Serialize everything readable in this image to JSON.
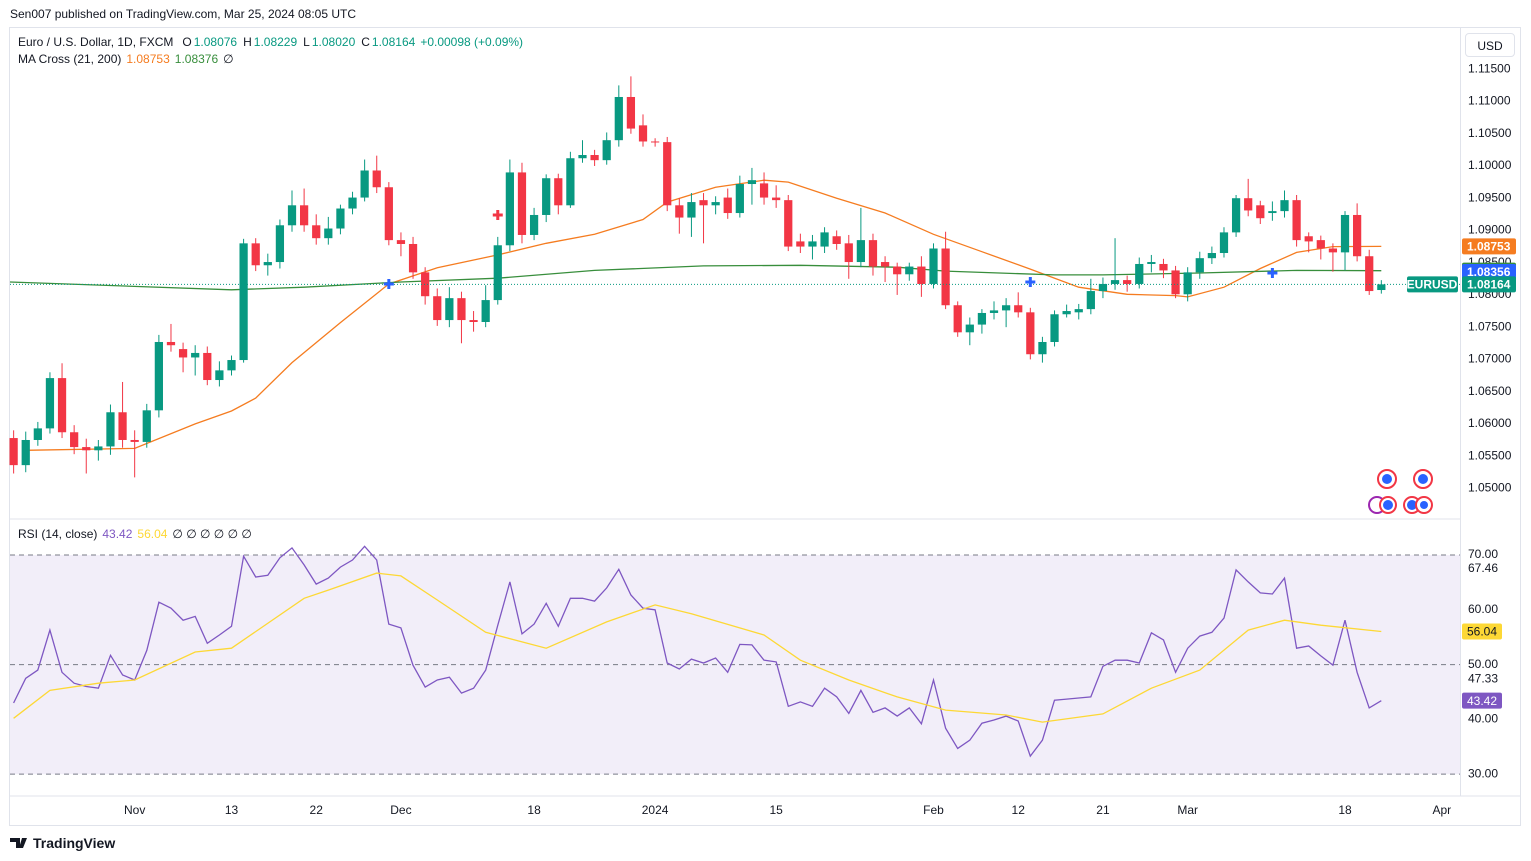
{
  "header": {
    "attribution": "Sen007 published on TradingView.com, Mar 25, 2024 08:05 UTC",
    "currency": "USD",
    "footer": "TradingView"
  },
  "chart_data": [
    {
      "type": "candlestick",
      "title": "Euro / U.S. Dollar, 1D, FXCM",
      "ohlc_legend": [
        {
          "label": "O",
          "value": "1.08076"
        },
        {
          "label": "H",
          "value": "1.08229"
        },
        {
          "label": "L",
          "value": "1.08020"
        },
        {
          "label": "C",
          "value": "1.08164"
        }
      ],
      "change": "+0.00098 (+0.09%)",
      "up_color": "#089981",
      "down_color": "#f23645",
      "open": [
        1.0578,
        1.0536,
        1.0575,
        1.0593,
        1.0671,
        1.0587,
        1.0564,
        1.0559,
        1.0565,
        1.0618,
        1.0575,
        1.0572,
        1.0621,
        1.0727,
        1.0716,
        1.0703,
        1.071,
        1.0668,
        1.0683,
        1.0699,
        1.088,
        1.0846,
        1.0851,
        1.0908,
        1.0939,
        1.0908,
        1.0888,
        1.0903,
        1.0934,
        1.0951,
        1.0993,
        1.0967,
        1.0885,
        1.0879,
        1.0835,
        1.0798,
        1.0761,
        1.0795,
        1.0761,
        1.0758,
        1.0792,
        1.0877,
        1.099,
        1.0893,
        1.0924,
        1.0981,
        1.0939,
        1.1012,
        1.1017,
        1.1009,
        1.104,
        1.1107,
        1.1063,
        1.1038,
        1.1037,
        1.0939,
        1.092,
        1.0947,
        1.0939,
        1.0951,
        1.0927,
        1.0972,
        1.0973,
        1.0951,
        1.0947,
        1.0883,
        1.0875,
        1.0875,
        1.0891,
        1.088,
        1.0851,
        1.0885,
        1.0851,
        1.0844,
        1.0832,
        1.0844,
        1.0817,
        1.0872,
        1.0784,
        1.0742,
        1.0754,
        1.0772,
        1.0776,
        1.0784,
        1.0773,
        1.0708,
        1.0727,
        1.077,
        1.0773,
        1.0778,
        1.0806,
        1.0817,
        1.0823,
        1.0817,
        1.0848,
        1.0848,
        1.0838,
        1.0801,
        1.0835,
        1.0857,
        1.0865,
        1.0897,
        1.095,
        1.0939,
        1.0927,
        1.093,
        1.0947,
        1.0891,
        1.0885,
        1.0872,
        1.0866,
        1.0924,
        1.086,
        1.08076
      ],
      "high": [
        1.059,
        1.0588,
        1.0603,
        1.068,
        1.0694,
        1.0598,
        1.0577,
        1.0575,
        1.063,
        1.0665,
        1.059,
        1.0631,
        1.0738,
        1.0755,
        1.0726,
        1.0722,
        1.072,
        1.0697,
        1.0706,
        1.0887,
        1.0888,
        1.0864,
        1.0917,
        1.0962,
        1.0965,
        1.0925,
        1.0921,
        1.094,
        1.096,
        1.101,
        1.1016,
        1.0975,
        1.0897,
        1.089,
        1.0843,
        1.081,
        1.0812,
        1.0805,
        1.0775,
        1.0815,
        1.089,
        1.101,
        1.1005,
        1.0935,
        1.0987,
        1.0988,
        1.1022,
        1.104,
        1.1025,
        1.1052,
        1.1125,
        1.1139,
        1.108,
        1.1043,
        1.1045,
        1.095,
        1.0958,
        1.0958,
        1.0953,
        1.0965,
        1.0985,
        1.0997,
        1.099,
        1.097,
        1.0955,
        1.0895,
        1.0893,
        1.0905,
        1.09,
        1.0893,
        1.0935,
        1.0895,
        1.086,
        1.085,
        1.085,
        1.086,
        1.088,
        1.0898,
        1.079,
        1.0765,
        1.0778,
        1.079,
        1.0795,
        1.0804,
        1.078,
        1.0735,
        1.0776,
        1.0785,
        1.0786,
        1.0825,
        1.0827,
        1.0888,
        1.083,
        1.0858,
        1.0862,
        1.0856,
        1.0845,
        1.0843,
        1.0867,
        1.0875,
        1.0905,
        1.0955,
        1.098,
        1.0946,
        1.0945,
        1.0962,
        1.0955,
        1.0897,
        1.0892,
        1.088,
        1.093,
        1.0942,
        1.087,
        1.08229
      ],
      "low": [
        1.0523,
        1.0525,
        1.0566,
        1.0585,
        1.0578,
        1.0553,
        1.0523,
        1.0543,
        1.0552,
        1.0563,
        1.0517,
        1.0563,
        1.061,
        1.0712,
        1.068,
        1.0675,
        1.066,
        1.0658,
        1.0675,
        1.0695,
        1.0837,
        1.083,
        1.0841,
        1.0898,
        1.0898,
        1.0878,
        1.0878,
        1.0894,
        1.0925,
        1.0945,
        1.0958,
        1.0877,
        1.086,
        1.0825,
        1.0785,
        1.0752,
        1.075,
        1.0725,
        1.0743,
        1.075,
        1.0785,
        1.0868,
        1.088,
        1.0885,
        1.0913,
        1.0925,
        1.0935,
        1.1005,
        1.1,
        1.1002,
        1.103,
        1.105,
        1.103,
        1.103,
        1.093,
        1.0895,
        1.089,
        1.088,
        1.0925,
        1.0918,
        1.092,
        1.094,
        1.094,
        1.0935,
        1.0868,
        1.0865,
        1.0855,
        1.0865,
        1.087,
        1.0825,
        1.0843,
        1.083,
        1.082,
        1.08,
        1.0822,
        1.0797,
        1.081,
        1.0778,
        1.0735,
        1.0722,
        1.074,
        1.0762,
        1.075,
        1.0765,
        1.07,
        1.0695,
        1.072,
        1.0765,
        1.0762,
        1.077,
        1.0795,
        1.0808,
        1.0805,
        1.081,
        1.0835,
        1.0826,
        1.0795,
        1.079,
        1.0825,
        1.0848,
        1.0858,
        1.089,
        1.0922,
        1.091,
        1.0915,
        1.092,
        1.0875,
        1.0866,
        1.0855,
        1.0836,
        1.0838,
        1.0852,
        1.08,
        1.0802
      ],
      "close": [
        1.0536,
        1.0575,
        1.0593,
        1.0671,
        1.0587,
        1.0564,
        1.0559,
        1.0565,
        1.0618,
        1.0575,
        1.0572,
        1.0621,
        1.0727,
        1.0722,
        1.0703,
        1.071,
        1.0668,
        1.0683,
        1.0699,
        1.088,
        1.0846,
        1.0851,
        1.0908,
        1.0939,
        1.0908,
        1.0888,
        1.0903,
        1.0934,
        1.0951,
        1.0993,
        1.0967,
        1.0885,
        1.0879,
        1.0835,
        1.0798,
        1.0761,
        1.0795,
        1.0761,
        1.0758,
        1.0792,
        1.0877,
        1.099,
        1.0893,
        1.0924,
        1.0981,
        1.0939,
        1.1012,
        1.1017,
        1.1009,
        1.104,
        1.1107,
        1.1058,
        1.1038,
        1.1037,
        1.0939,
        1.092,
        1.0944,
        1.0939,
        1.0944,
        1.0927,
        1.0972,
        1.0978,
        1.0951,
        1.0947,
        1.0875,
        1.0875,
        1.0883,
        1.0897,
        1.0879,
        1.0851,
        1.0885,
        1.0844,
        1.0844,
        1.0832,
        1.0844,
        1.0817,
        1.0872,
        1.0784,
        1.0742,
        1.0754,
        1.0772,
        1.0776,
        1.0784,
        1.0773,
        1.0708,
        1.0727,
        1.077,
        1.0775,
        1.0778,
        1.0806,
        1.0817,
        1.0823,
        1.0817,
        1.0848,
        1.0851,
        1.0838,
        1.0801,
        1.0835,
        1.0857,
        1.0865,
        1.0897,
        1.095,
        1.0931,
        1.0919,
        1.093,
        1.0947,
        1.0885,
        1.0883,
        1.0872,
        1.0866,
        1.0924,
        1.086,
        1.0806,
        1.08164
      ],
      "indicator": {
        "name": "MA Cross (21, 200)",
        "extra": "∅",
        "series": [
          {
            "color": "#f57c20",
            "x": [
              1,
              10,
              15,
              18,
              20,
              23,
              27,
              31,
              35,
              40,
              44,
              48,
              52,
              54,
              58,
              62,
              64,
              68,
              72,
              76,
              80,
              84,
              88,
              92,
              96,
              97,
              100,
              103,
              106,
              109,
              113
            ],
            "values": [
              1.0559,
              1.0562,
              1.06,
              1.062,
              1.064,
              1.0695,
              1.0757,
              1.0817,
              1.0842,
              1.0862,
              1.088,
              1.0894,
              1.0917,
              1.0944,
              1.0967,
              1.0978,
              1.0975,
              1.095,
              1.0927,
              1.0894,
              1.0867,
              1.084,
              1.0812,
              1.0801,
              1.0799,
              1.0797,
              1.0812,
              1.0841,
              1.0866,
              1.0875,
              1.08753
            ]
          },
          {
            "color": "#388e3c",
            "x": [
              -0.3,
              18,
              24,
              32,
              40,
              48,
              57,
              65,
              73,
              77,
              86,
              90,
              98,
              106,
              113
            ],
            "values": [
              1.082,
              1.0808,
              1.0812,
              1.082,
              1.0826,
              1.0838,
              1.0845,
              1.0846,
              1.0843,
              1.0837,
              1.0831,
              1.0831,
              1.0834,
              1.0838,
              1.08376
            ]
          }
        ]
      },
      "price_tags": [
        {
          "value": 1.08753,
          "label": "1.08753",
          "color": "#f57c20"
        },
        {
          "value": 1.08376,
          "label": "1.08376",
          "color": "#388e3c"
        },
        {
          "value": 1.08356,
          "label": "1.08356",
          "color": "#2962ff"
        },
        {
          "name": "EURUSD",
          "value": 1.08164,
          "label": "1.08164",
          "color": "#089981"
        }
      ],
      "crosses": [
        {
          "x": 31,
          "value": 1.0817,
          "color": "#2962ff"
        },
        {
          "x": 84,
          "value": 1.082,
          "color": "#2962ff"
        },
        {
          "x": 104,
          "value": 1.0834,
          "color": "#2962ff"
        },
        {
          "x": 40,
          "value": 1.0924,
          "color": "#f23645"
        }
      ],
      "xlim": [
        -0.3,
        119.5
      ],
      "xticks": [
        {
          "value": 10,
          "label": "Nov"
        },
        {
          "value": 18,
          "label": "13"
        },
        {
          "value": 25,
          "label": "22"
        },
        {
          "value": 32,
          "label": "Dec"
        },
        {
          "value": 43,
          "label": "18"
        },
        {
          "value": 53,
          "label": "2024"
        },
        {
          "value": 63,
          "label": "15"
        },
        {
          "value": 76,
          "label": "Feb"
        },
        {
          "value": 83,
          "label": "12"
        },
        {
          "value": 90,
          "label": "21"
        },
        {
          "value": 97,
          "label": "Mar"
        },
        {
          "value": 110,
          "label": "18"
        },
        {
          "value": 118,
          "label": "Apr"
        }
      ],
      "ylim": [
        1.0454,
        1.1214
      ],
      "yticks": [
        {
          "value": 1.05,
          "label": "1.05000"
        },
        {
          "value": 1.055,
          "label": "1.05500"
        },
        {
          "value": 1.06,
          "label": "1.06000"
        },
        {
          "value": 1.065,
          "label": "1.06500"
        },
        {
          "value": 1.07,
          "label": "1.07000"
        },
        {
          "value": 1.075,
          "label": "1.07500"
        },
        {
          "value": 1.08,
          "label": "1.08000"
        },
        {
          "value": 1.085,
          "label": "1.08500"
        },
        {
          "value": 1.09,
          "label": "1.09000"
        },
        {
          "value": 1.095,
          "label": "1.09500"
        },
        {
          "value": 1.1,
          "label": "1.10000"
        },
        {
          "value": 1.105,
          "label": "1.10500"
        },
        {
          "value": 1.11,
          "label": "1.11000"
        },
        {
          "value": 1.115,
          "label": "1.11500"
        }
      ],
      "grid": false
    },
    {
      "type": "line",
      "title": "RSI (14, close)",
      "extra": "∅ ∅ ∅ ∅ ∅ ∅",
      "series": [
        {
          "color": "#7e57c2",
          "values": [
            43.0,
            47.5,
            49.0,
            56.3,
            48.6,
            46.6,
            46.0,
            45.7,
            51.7,
            48.1,
            47.2,
            52.6,
            61.4,
            60.3,
            58.1,
            58.8,
            53.9,
            55.4,
            57.0,
            69.8,
            66.0,
            66.3,
            69.5,
            71.3,
            68.2,
            64.7,
            65.8,
            67.8,
            69.1,
            71.6,
            69.1,
            57.4,
            56.7,
            49.9,
            45.9,
            47.2,
            47.7,
            44.8,
            45.7,
            49.0,
            57.2,
            65.1,
            55.6,
            57.4,
            61.2,
            57.0,
            62.1,
            62.1,
            61.6,
            64.0,
            67.4,
            62.7,
            60.3,
            60.0,
            50.3,
            49.2,
            51.0,
            50.3,
            51.2,
            48.6,
            53.7,
            53.6,
            50.8,
            50.5,
            42.4,
            43.2,
            42.4,
            45.7,
            44.1,
            41.1,
            45.3,
            41.3,
            42.1,
            40.6,
            42.1,
            39.2,
            47.2,
            38.4,
            34.7,
            36.2,
            39.3,
            39.9,
            40.6,
            39.7,
            33.3,
            36.2,
            43.5,
            43.7,
            43.9,
            44.1,
            49.7,
            50.8,
            50.8,
            50.3,
            55.8,
            54.5,
            48.6,
            53.0,
            55.2,
            55.9,
            58.5,
            67.3,
            65.1,
            63.1,
            62.9,
            65.8,
            53.0,
            53.4,
            51.6,
            49.9,
            58.1,
            48.6,
            42.1,
            43.42
          ]
        },
        {
          "color": "#fdd835",
          "x": [
            0,
            3,
            7,
            10,
            15,
            18,
            24,
            26,
            30,
            32,
            35,
            39,
            44,
            49,
            53,
            56,
            62,
            65,
            69,
            73,
            77,
            82,
            85,
            90,
            94,
            98,
            102,
            105,
            108,
            113
          ],
          "values": [
            40.2,
            45.3,
            46.6,
            47.2,
            52.3,
            53.0,
            62.1,
            63.6,
            66.7,
            66.2,
            61.8,
            55.9,
            53.0,
            57.8,
            60.9,
            59.3,
            55.4,
            50.8,
            47.2,
            44.1,
            41.7,
            40.8,
            39.5,
            41.0,
            45.7,
            49.0,
            56.3,
            58.1,
            57.2,
            56.04
          ]
        }
      ],
      "band": {
        "upper": 70,
        "middle": 50,
        "lower": 30,
        "color": "#7e57c2"
      },
      "value_tags": [
        {
          "value": 43.42,
          "label": "43.42",
          "color": "#7e57c2"
        },
        {
          "value": 56.04,
          "label": "56.04",
          "color": "#fdd835"
        }
      ],
      "extra_labels": [
        67.46,
        47.33
      ],
      "xlim": [
        -0.3,
        119.5
      ],
      "ylim": [
        26.2,
        76.4
      ],
      "yticks": [
        {
          "value": 30,
          "label": "30.00"
        },
        {
          "value": 40,
          "label": "40.00"
        },
        {
          "value": 50,
          "label": "50.00"
        },
        {
          "value": 60,
          "label": "60.00"
        },
        {
          "value": 70,
          "label": "70.00"
        }
      ]
    }
  ]
}
